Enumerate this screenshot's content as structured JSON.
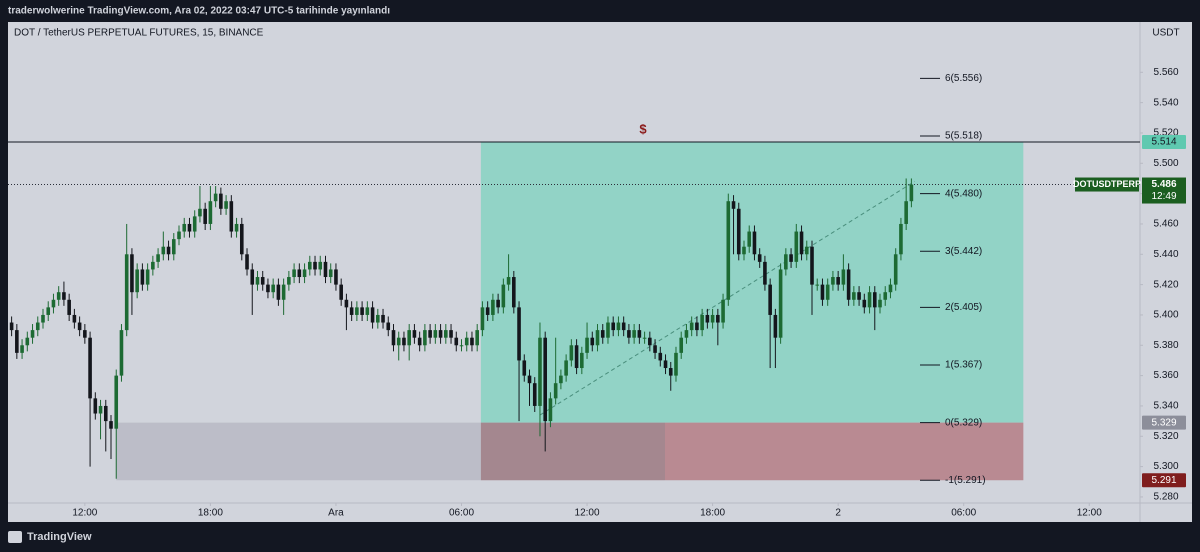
{
  "header": {
    "title": "traderwolwerine TradingView.com, Ara 02, 2022 03:47 UTC-5 tarihinde yayınlandı"
  },
  "footer": {
    "brand": "TradingView"
  },
  "chart_data": {
    "type": "candlestick",
    "title": "DOT / TetherUS PERPETUAL FUTURES, 15, BINANCE",
    "y_label": "USDT",
    "up_color": "#1d6a33",
    "down_color": "#14161c",
    "grid": false,
    "xlim": [
      -0.69,
      215.7
    ],
    "ylim": [
      5.276,
      5.578
    ],
    "xticks": [
      {
        "value": 14,
        "label": "12:00"
      },
      {
        "value": 38,
        "label": "18:00"
      },
      {
        "value": 62,
        "label": "Ara"
      },
      {
        "value": 86,
        "label": "06:00"
      },
      {
        "value": 110,
        "label": "12:00"
      },
      {
        "value": 134,
        "label": "18:00"
      },
      {
        "value": 158,
        "label": "2"
      },
      {
        "value": 182,
        "label": "06:00"
      },
      {
        "value": 206,
        "label": "12:00"
      }
    ],
    "yticks": [
      {
        "value": 5.28,
        "label": "5.280"
      },
      {
        "value": 5.3,
        "label": "5.300"
      },
      {
        "value": 5.32,
        "label": "5.320"
      },
      {
        "value": 5.34,
        "label": "5.340"
      },
      {
        "value": 5.36,
        "label": "5.360"
      },
      {
        "value": 5.38,
        "label": "5.380"
      },
      {
        "value": 5.4,
        "label": "5.400"
      },
      {
        "value": 5.42,
        "label": "5.420"
      },
      {
        "value": 5.44,
        "label": "5.440"
      },
      {
        "value": 5.46,
        "label": "5.460"
      },
      {
        "value": 5.48,
        "label": "5.480"
      },
      {
        "value": 5.5,
        "label": "5.500"
      },
      {
        "value": 5.52,
        "label": "5.520"
      },
      {
        "value": 5.54,
        "label": "5.540"
      },
      {
        "value": 5.56,
        "label": "5.560"
      }
    ],
    "open": [
      5.395,
      5.39,
      5.375,
      5.38,
      5.385,
      5.39,
      5.395,
      5.4,
      5.405,
      5.41,
      5.415,
      5.41,
      5.4,
      5.395,
      5.39,
      5.385,
      5.345,
      5.335,
      5.34,
      5.33,
      5.325,
      5.36,
      5.39,
      5.44,
      5.415,
      5.43,
      5.42,
      5.43,
      5.435,
      5.44,
      5.445,
      5.44,
      5.45,
      5.455,
      5.46,
      5.455,
      5.465,
      5.47,
      5.46,
      5.475,
      5.48,
      5.47,
      5.475,
      5.455,
      5.46,
      5.44,
      5.43,
      5.42,
      5.425,
      5.42,
      5.415,
      5.42,
      5.41,
      5.42,
      5.425,
      5.43,
      5.425,
      5.43,
      5.435,
      5.43,
      5.435,
      5.425,
      5.43,
      5.42,
      5.41,
      5.405,
      5.4,
      5.405,
      5.4,
      5.405,
      5.395,
      5.4,
      5.395,
      5.39,
      5.38,
      5.385,
      5.38,
      5.39,
      5.385,
      5.38,
      5.39,
      5.385,
      5.39,
      5.385,
      5.39,
      5.385,
      5.38,
      5.38,
      5.385,
      5.38,
      5.39,
      5.405,
      5.4,
      5.41,
      5.405,
      5.42,
      5.425,
      5.405,
      5.37,
      5.36,
      5.355,
      5.34,
      5.385,
      5.33,
      5.345,
      5.355,
      5.36,
      5.37,
      5.38,
      5.365,
      5.375,
      5.385,
      5.38,
      5.39,
      5.385,
      5.395,
      5.39,
      5.395,
      5.39,
      5.385,
      5.39,
      5.385,
      5.385,
      5.38,
      5.375,
      5.37,
      5.365,
      5.36,
      5.375,
      5.385,
      5.39,
      5.395,
      5.39,
      5.4,
      5.395,
      5.4,
      5.395,
      5.41,
      5.475,
      5.47,
      5.44,
      5.445,
      5.455,
      5.44,
      5.435,
      5.42,
      5.4,
      5.385,
      5.43,
      5.44,
      5.435,
      5.455,
      5.44,
      5.445,
      5.42,
      5.42,
      5.41,
      5.42,
      5.425,
      5.42,
      5.43,
      5.41,
      5.415,
      5.41,
      5.405,
      5.415,
      5.405,
      5.41,
      5.415,
      5.42,
      5.44,
      5.46,
      5.475
    ],
    "high": [
      5.399,
      5.394,
      5.384,
      5.389,
      5.394,
      5.399,
      5.404,
      5.409,
      5.414,
      5.419,
      5.422,
      5.414,
      5.404,
      5.399,
      5.394,
      5.389,
      5.349,
      5.344,
      5.344,
      5.334,
      5.364,
      5.394,
      5.46,
      5.444,
      5.434,
      5.434,
      5.434,
      5.439,
      5.444,
      5.455,
      5.449,
      5.454,
      5.459,
      5.464,
      5.464,
      5.469,
      5.485,
      5.474,
      5.485,
      5.485,
      5.484,
      5.479,
      5.479,
      5.464,
      5.464,
      5.444,
      5.434,
      5.429,
      5.429,
      5.424,
      5.424,
      5.424,
      5.424,
      5.429,
      5.434,
      5.434,
      5.434,
      5.439,
      5.439,
      5.439,
      5.439,
      5.434,
      5.434,
      5.424,
      5.414,
      5.409,
      5.409,
      5.409,
      5.409,
      5.409,
      5.404,
      5.404,
      5.399,
      5.394,
      5.389,
      5.389,
      5.394,
      5.394,
      5.389,
      5.394,
      5.394,
      5.394,
      5.394,
      5.394,
      5.394,
      5.389,
      5.384,
      5.389,
      5.389,
      5.394,
      5.409,
      5.409,
      5.414,
      5.414,
      5.424,
      5.44,
      5.429,
      5.409,
      5.374,
      5.364,
      5.359,
      5.395,
      5.389,
      5.349,
      5.385,
      5.364,
      5.374,
      5.384,
      5.384,
      5.379,
      5.395,
      5.389,
      5.394,
      5.394,
      5.399,
      5.399,
      5.399,
      5.399,
      5.394,
      5.394,
      5.394,
      5.389,
      5.389,
      5.384,
      5.379,
      5.374,
      5.369,
      5.379,
      5.389,
      5.394,
      5.399,
      5.399,
      5.404,
      5.404,
      5.404,
      5.404,
      5.414,
      5.48,
      5.479,
      5.474,
      5.449,
      5.459,
      5.459,
      5.444,
      5.439,
      5.424,
      5.404,
      5.434,
      5.444,
      5.444,
      5.46,
      5.459,
      5.449,
      5.449,
      5.424,
      5.424,
      5.424,
      5.429,
      5.429,
      5.44,
      5.434,
      5.419,
      5.419,
      5.414,
      5.419,
      5.419,
      5.414,
      5.419,
      5.424,
      5.444,
      5.464,
      5.49,
      5.49
    ],
    "low": [
      5.386,
      5.371,
      5.371,
      5.376,
      5.381,
      5.386,
      5.391,
      5.396,
      5.401,
      5.406,
      5.406,
      5.396,
      5.391,
      5.386,
      5.381,
      5.3,
      5.331,
      5.318,
      5.31,
      5.305,
      5.292,
      5.356,
      5.386,
      5.4,
      5.411,
      5.416,
      5.416,
      5.426,
      5.431,
      5.436,
      5.436,
      5.436,
      5.446,
      5.451,
      5.451,
      5.451,
      5.461,
      5.456,
      5.456,
      5.471,
      5.466,
      5.466,
      5.451,
      5.451,
      5.436,
      5.426,
      5.4,
      5.416,
      5.416,
      5.411,
      5.411,
      5.406,
      5.4,
      5.416,
      5.421,
      5.421,
      5.421,
      5.426,
      5.426,
      5.426,
      5.421,
      5.421,
      5.416,
      5.406,
      5.39,
      5.396,
      5.396,
      5.396,
      5.396,
      5.391,
      5.391,
      5.391,
      5.386,
      5.376,
      5.37,
      5.376,
      5.37,
      5.381,
      5.376,
      5.376,
      5.381,
      5.381,
      5.381,
      5.381,
      5.381,
      5.376,
      5.376,
      5.376,
      5.376,
      5.376,
      5.386,
      5.396,
      5.396,
      5.401,
      5.401,
      5.416,
      5.401,
      5.33,
      5.356,
      5.34,
      5.336,
      5.32,
      5.31,
      5.326,
      5.341,
      5.351,
      5.356,
      5.366,
      5.361,
      5.361,
      5.371,
      5.376,
      5.376,
      5.381,
      5.381,
      5.386,
      5.386,
      5.386,
      5.381,
      5.381,
      5.381,
      5.381,
      5.376,
      5.371,
      5.366,
      5.361,
      5.35,
      5.356,
      5.371,
      5.381,
      5.386,
      5.386,
      5.386,
      5.391,
      5.391,
      5.38,
      5.391,
      5.406,
      5.44,
      5.436,
      5.436,
      5.441,
      5.436,
      5.431,
      5.416,
      5.365,
      5.365,
      5.381,
      5.426,
      5.431,
      5.431,
      5.436,
      5.436,
      5.4,
      5.416,
      5.406,
      5.406,
      5.416,
      5.416,
      5.416,
      5.406,
      5.406,
      5.406,
      5.401,
      5.401,
      5.39,
      5.401,
      5.406,
      5.411,
      5.416,
      5.436,
      5.456,
      5.471
    ],
    "close": [
      5.39,
      5.375,
      5.38,
      5.385,
      5.39,
      5.395,
      5.4,
      5.405,
      5.41,
      5.415,
      5.41,
      5.4,
      5.395,
      5.39,
      5.385,
      5.345,
      5.335,
      5.34,
      5.33,
      5.325,
      5.36,
      5.39,
      5.44,
      5.415,
      5.43,
      5.42,
      5.43,
      5.435,
      5.44,
      5.445,
      5.44,
      5.45,
      5.455,
      5.46,
      5.455,
      5.465,
      5.47,
      5.46,
      5.475,
      5.48,
      5.47,
      5.475,
      5.455,
      5.46,
      5.44,
      5.43,
      5.42,
      5.425,
      5.42,
      5.415,
      5.42,
      5.41,
      5.42,
      5.425,
      5.43,
      5.425,
      5.43,
      5.435,
      5.43,
      5.435,
      5.425,
      5.43,
      5.42,
      5.41,
      5.405,
      5.4,
      5.405,
      5.4,
      5.405,
      5.395,
      5.4,
      5.395,
      5.39,
      5.38,
      5.385,
      5.38,
      5.39,
      5.385,
      5.38,
      5.39,
      5.385,
      5.39,
      5.385,
      5.39,
      5.385,
      5.38,
      5.38,
      5.385,
      5.38,
      5.39,
      5.405,
      5.4,
      5.41,
      5.405,
      5.42,
      5.425,
      5.405,
      5.37,
      5.36,
      5.355,
      5.34,
      5.385,
      5.33,
      5.345,
      5.355,
      5.36,
      5.37,
      5.38,
      5.365,
      5.375,
      5.385,
      5.38,
      5.39,
      5.385,
      5.395,
      5.39,
      5.395,
      5.39,
      5.385,
      5.39,
      5.385,
      5.385,
      5.38,
      5.375,
      5.37,
      5.365,
      5.36,
      5.375,
      5.385,
      5.39,
      5.395,
      5.39,
      5.4,
      5.395,
      5.4,
      5.395,
      5.41,
      5.475,
      5.47,
      5.44,
      5.445,
      5.455,
      5.44,
      5.435,
      5.42,
      5.4,
      5.385,
      5.43,
      5.44,
      5.435,
      5.455,
      5.44,
      5.445,
      5.42,
      5.42,
      5.41,
      5.42,
      5.425,
      5.42,
      5.43,
      5.41,
      5.415,
      5.41,
      5.405,
      5.415,
      5.405,
      5.41,
      5.415,
      5.42,
      5.44,
      5.46,
      5.475,
      5.486
    ],
    "position": {
      "target": 5.514,
      "entry": 5.329,
      "stop": 5.291,
      "start": 89.7,
      "split": 124.9,
      "end": 193.4
    },
    "zone": {
      "start": 20,
      "end": 89.7,
      "top": 5.329,
      "bottom": 5.291
    },
    "hline": 5.514,
    "last_price": 5.486,
    "symbol_tag": "DOTUSDTPERP",
    "countdown": "12:49",
    "trendline": {
      "x": [
        101,
        172.6
      ],
      "y": [
        5.334,
        5.488
      ]
    },
    "annotations": [
      {
        "text": "$",
        "x": 120.7,
        "y": 5.522
      }
    ],
    "fib": [
      {
        "value": 5.556,
        "label": "6(5.556)"
      },
      {
        "value": 5.518,
        "label": "5(5.518)"
      },
      {
        "value": 5.48,
        "label": "4(5.480)"
      },
      {
        "value": 5.442,
        "label": "3(5.442)"
      },
      {
        "value": 5.405,
        "label": "2(5.405)"
      },
      {
        "value": 5.367,
        "label": "1(5.367)"
      },
      {
        "value": 5.329,
        "label": "0(5.329)"
      },
      {
        "value": 5.291,
        "label": "-1(5.291)"
      }
    ]
  }
}
